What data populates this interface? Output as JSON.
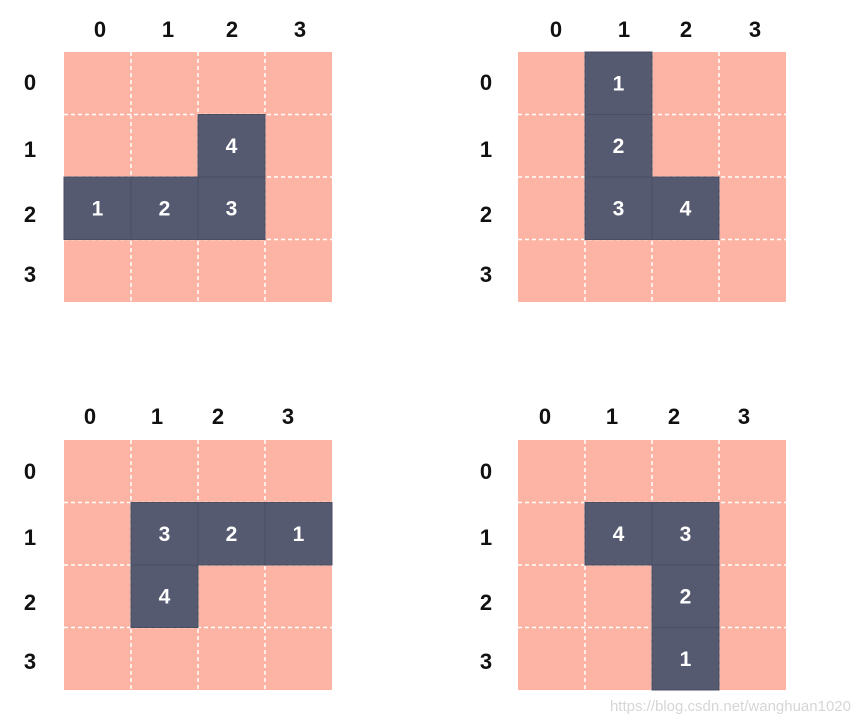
{
  "colors": {
    "background": "#ffffff",
    "cell": "#fdb4a4",
    "block": "#565a70",
    "grid_line": "#ffffff",
    "label": "#111111"
  },
  "grids": [
    {
      "col_labels": [
        "0",
        "1",
        "2",
        "3"
      ],
      "row_labels": [
        "0",
        "1",
        "2",
        "3"
      ],
      "blocks": [
        {
          "row": 2,
          "col": 0,
          "label": "1"
        },
        {
          "row": 2,
          "col": 1,
          "label": "2"
        },
        {
          "row": 2,
          "col": 2,
          "label": "3"
        },
        {
          "row": 1,
          "col": 2,
          "label": "4"
        }
      ]
    },
    {
      "col_labels": [
        "0",
        "1",
        "2",
        "3"
      ],
      "row_labels": [
        "0",
        "1",
        "2",
        "3"
      ],
      "blocks": [
        {
          "row": 0,
          "col": 1,
          "label": "1"
        },
        {
          "row": 1,
          "col": 1,
          "label": "2"
        },
        {
          "row": 2,
          "col": 1,
          "label": "3"
        },
        {
          "row": 2,
          "col": 2,
          "label": "4"
        }
      ]
    },
    {
      "col_labels": [
        "0",
        "1",
        "2",
        "3"
      ],
      "row_labels": [
        "0",
        "1",
        "2",
        "3"
      ],
      "blocks": [
        {
          "row": 1,
          "col": 3,
          "label": "1"
        },
        {
          "row": 1,
          "col": 2,
          "label": "2"
        },
        {
          "row": 1,
          "col": 1,
          "label": "3"
        },
        {
          "row": 2,
          "col": 1,
          "label": "4"
        }
      ]
    },
    {
      "col_labels": [
        "0",
        "1",
        "2",
        "3"
      ],
      "row_labels": [
        "0",
        "1",
        "2",
        "3"
      ],
      "blocks": [
        {
          "row": 3,
          "col": 2,
          "label": "1"
        },
        {
          "row": 2,
          "col": 2,
          "label": "2"
        },
        {
          "row": 1,
          "col": 2,
          "label": "3"
        },
        {
          "row": 1,
          "col": 1,
          "label": "4"
        }
      ]
    }
  ],
  "watermark": "https://blog.csdn.net/wanghuan1020"
}
